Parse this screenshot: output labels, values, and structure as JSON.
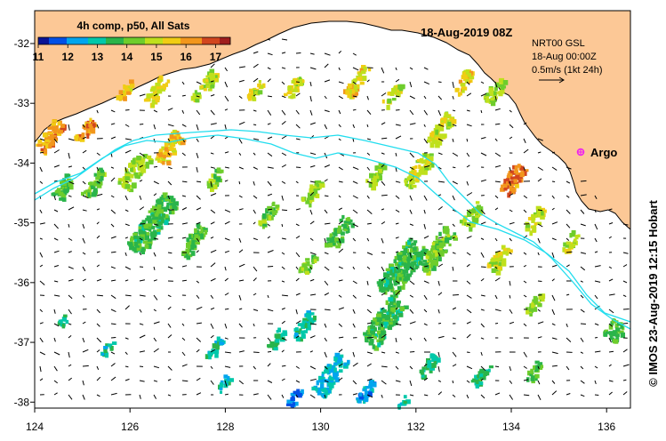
{
  "map": {
    "colorbar": {
      "title": "4h comp, p50, All Sats",
      "ticks": [
        "11",
        "12",
        "13",
        "14",
        "15",
        "16",
        "17"
      ],
      "range": [
        11,
        17.5
      ]
    },
    "date_label": "18-Aug-2019 08Z",
    "info": {
      "line1": "NRT00 GSL",
      "line2": "18-Aug 00:00Z",
      "line3": "0.5m/s (1kt 24h)"
    },
    "argo_label": "Argo",
    "credit": "© IMOS 23-Aug-2019 12:15 Hobart",
    "lon_ticks": [
      "124",
      "126",
      "128",
      "130",
      "132",
      "134",
      "136"
    ],
    "lat_ticks": [
      "-32",
      "-33",
      "-34",
      "-35",
      "-36",
      "-37",
      "-38"
    ],
    "lon_range": [
      124,
      136.5
    ],
    "lat_range": [
      -31.45,
      -38.1
    ],
    "colors": {
      "land": "#fcc896",
      "ocean": "#ffffff",
      "track": "#22ddee",
      "argo": "#ee22ee",
      "arrows": "#000000"
    },
    "colormap": [
      "#0a1496",
      "#0050e6",
      "#00a5ee",
      "#00c8aa",
      "#2ab44a",
      "#6ecd2c",
      "#bfe01c",
      "#f0cd14",
      "#f2961c",
      "#d2461e",
      "#a01e1e"
    ]
  }
}
